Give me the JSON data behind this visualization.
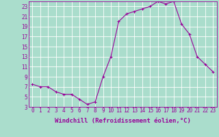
{
  "x": [
    0,
    1,
    2,
    3,
    4,
    5,
    6,
    7,
    8,
    9,
    10,
    11,
    12,
    13,
    14,
    15,
    16,
    17,
    18,
    19,
    20,
    21,
    22,
    23
  ],
  "y": [
    7.5,
    7.0,
    7.0,
    6.0,
    5.5,
    5.5,
    4.5,
    3.5,
    4.0,
    9.0,
    13.0,
    20.0,
    21.5,
    22.0,
    22.5,
    23.0,
    24.0,
    23.5,
    24.0,
    19.5,
    17.5,
    13.0,
    11.5,
    10.0
  ],
  "xlim": [
    -0.5,
    23.5
  ],
  "ylim": [
    3,
    24
  ],
  "yticks": [
    3,
    5,
    7,
    9,
    11,
    13,
    15,
    17,
    19,
    21,
    23
  ],
  "xticks": [
    0,
    1,
    2,
    3,
    4,
    5,
    6,
    7,
    8,
    9,
    10,
    11,
    12,
    13,
    14,
    15,
    16,
    17,
    18,
    19,
    20,
    21,
    22,
    23
  ],
  "xlabel": "Windchill (Refroidissement éolien,°C)",
  "line_color": "#990099",
  "marker": "+",
  "bg_color": "#aaddcc",
  "grid_color": "#ffffff",
  "tick_color": "#990099",
  "label_color": "#990099",
  "font_size": 5.5,
  "xlabel_fontsize": 6.5
}
